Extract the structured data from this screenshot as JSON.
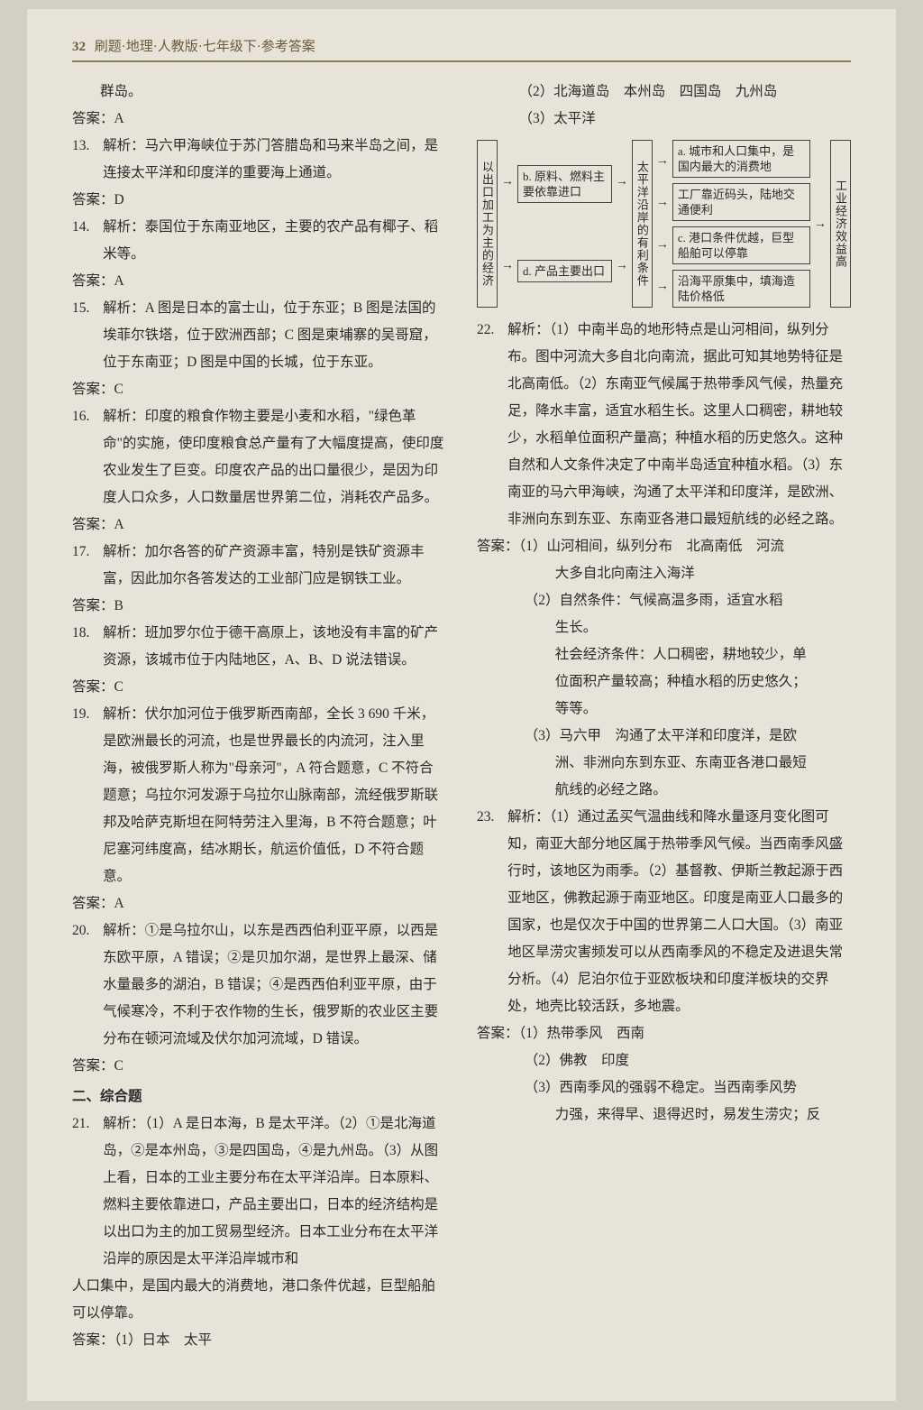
{
  "header": {
    "page_number": "32",
    "title": "刷题·地理·人教版·七年级下·参考答案"
  },
  "col1_top": "群岛。",
  "ans12": "答案：A",
  "q13": {
    "num": "13.",
    "label": "解析：",
    "text": "马六甲海峡位于苏门答腊岛和马来半岛之间，是连接太平洋和印度洋的重要海上通道。"
  },
  "ans13": "答案：D",
  "q14": {
    "num": "14.",
    "label": "解析：",
    "text": "泰国位于东南亚地区，主要的农产品有椰子、稻米等。"
  },
  "ans14": "答案：A",
  "q15": {
    "num": "15.",
    "label": "解析：",
    "text": "A 图是日本的富士山，位于东亚；B 图是法国的埃菲尔铁塔，位于欧洲西部；C 图是柬埔寨的吴哥窟，位于东南亚；D 图是中国的长城，位于东亚。"
  },
  "ans15": "答案：C",
  "q16": {
    "num": "16.",
    "label": "解析：",
    "text": "印度的粮食作物主要是小麦和水稻，\"绿色革命\"的实施，使印度粮食总产量有了大幅度提高，使印度农业发生了巨变。印度农产品的出口量很少，是因为印度人口众多，人口数量居世界第二位，消耗农产品多。"
  },
  "ans16": "答案：A",
  "q17": {
    "num": "17.",
    "label": "解析：",
    "text": "加尔各答的矿产资源丰富，特别是铁矿资源丰富，因此加尔各答发达的工业部门应是钢铁工业。"
  },
  "ans17": "答案：B",
  "q18": {
    "num": "18.",
    "label": "解析：",
    "text": "班加罗尔位于德干高原上，该地没有丰富的矿产资源，该城市位于内陆地区，A、B、D 说法错误。"
  },
  "ans18": "答案：C",
  "q19": {
    "num": "19.",
    "label": "解析：",
    "text": "伏尔加河位于俄罗斯西南部，全长 3 690 千米，是欧洲最长的河流，也是世界最长的内流河，注入里海，被俄罗斯人称为\"母亲河\"，A 符合题意，C 不符合题意；乌拉尔河发源于乌拉尔山脉南部，流经俄罗斯联邦及哈萨克斯坦在阿特劳注入里海，B 不符合题意；叶尼塞河纬度高，结冰期长，航运价值低，D 不符合题意。"
  },
  "ans19": "答案：A",
  "q20": {
    "num": "20.",
    "label": "解析：",
    "text": "①是乌拉尔山，以东是西西伯利亚平原，以西是东欧平原，A 错误；②是贝加尔湖，是世界上最深、储水量最多的湖泊，B 错误；④是西西伯利亚平原，由于气候寒冷，不利于农作物的生长，俄罗斯的农业区主要分布在顿河流域及伏尔加河流域，D 错误。"
  },
  "ans20": "答案：C",
  "section2": "二、综合题",
  "q21": {
    "num": "21.",
    "label": "解析：",
    "text": "（1）A 是日本海，B 是太平洋。（2）①是北海道岛，②是本州岛，③是四国岛，④是九州岛。（3）从图上看，日本的工业主要分布在太平洋沿岸。日本原料、燃料主要依靠进口，产品主要出口，日本的经济结构是以出口为主的加工贸易型经济。日本工业分布在太平洋沿岸的原因是太平洋沿岸城市和"
  },
  "q21_cont": "人口集中，是国内最大的消费地，港口条件优越，巨型船舶可以停靠。",
  "ans21_label": "答案：",
  "ans21_1": "（1）日本　太平",
  "ans21_2": "（2）北海道岛　本州岛　四国岛　九州岛",
  "ans21_3": "（3）太平洋",
  "flowchart": {
    "left": "以出口加工为主的经济",
    "b": "b. 原料、燃料主要依靠进口",
    "d": "d. 产品主要出口",
    "mid": "太平洋沿岸的有利条件",
    "a": "a. 城市和人口集中，是国内最大的消费地",
    "c1": "工厂靠近码头，陆地交通便利",
    "c": "c. 港口条件优越，巨型船舶可以停靠",
    "c2": "沿海平原集中，填海造陆价格低",
    "right": "工业经济效益高"
  },
  "q22": {
    "num": "22.",
    "label": "解析：",
    "text": "（1）中南半岛的地形特点是山河相间，纵列分布。图中河流大多自北向南流，据此可知其地势特征是北高南低。（2）东南亚气候属于热带季风气候，热量充足，降水丰富，适宜水稻生长。这里人口稠密，耕地较少，水稻单位面积产量高；种植水稻的历史悠久。这种自然和人文条件决定了中南半岛适宜种植水稻。（3）东南亚的马六甲海峡，沟通了太平洋和印度洋，是欧洲、非洲向东到东亚、东南亚各港口最短航线的必经之路。"
  },
  "ans22_label": "答案：",
  "ans22_1a": "（1）山河相间，纵列分布　北高南低　河流",
  "ans22_1b": "大多自北向南注入海洋",
  "ans22_2a": "（2）自然条件：气候高温多雨，适宜水稻",
  "ans22_2b": "生长。",
  "ans22_2c": "社会经济条件：人口稠密，耕地较少，单",
  "ans22_2d": "位面积产量较高；种植水稻的历史悠久；",
  "ans22_2e": "等等。",
  "ans22_3a": "（3）马六甲　沟通了太平洋和印度洋，是欧",
  "ans22_3b": "洲、非洲向东到东亚、东南亚各港口最短",
  "ans22_3c": "航线的必经之路。",
  "q23": {
    "num": "23.",
    "label": "解析：",
    "text": "（1）通过孟买气温曲线和降水量逐月变化图可知，南亚大部分地区属于热带季风气候。当西南季风盛行时，该地区为雨季。（2）基督教、伊斯兰教起源于西亚地区，佛教起源于南亚地区。印度是南亚人口最多的国家，也是仅次于中国的世界第二人口大国。（3）南亚地区旱涝灾害频发可以从西南季风的不稳定及进退失常分析。（4）尼泊尔位于亚欧板块和印度洋板块的交界处，地壳比较活跃，多地震。"
  },
  "ans23_label": "答案：",
  "ans23_1": "（1）热带季风　西南",
  "ans23_2": "（2）佛教　印度",
  "ans23_3a": "（3）西南季风的强弱不稳定。当西南季风势",
  "ans23_3b": "力强，来得早、退得迟时，易发生涝灾；反"
}
